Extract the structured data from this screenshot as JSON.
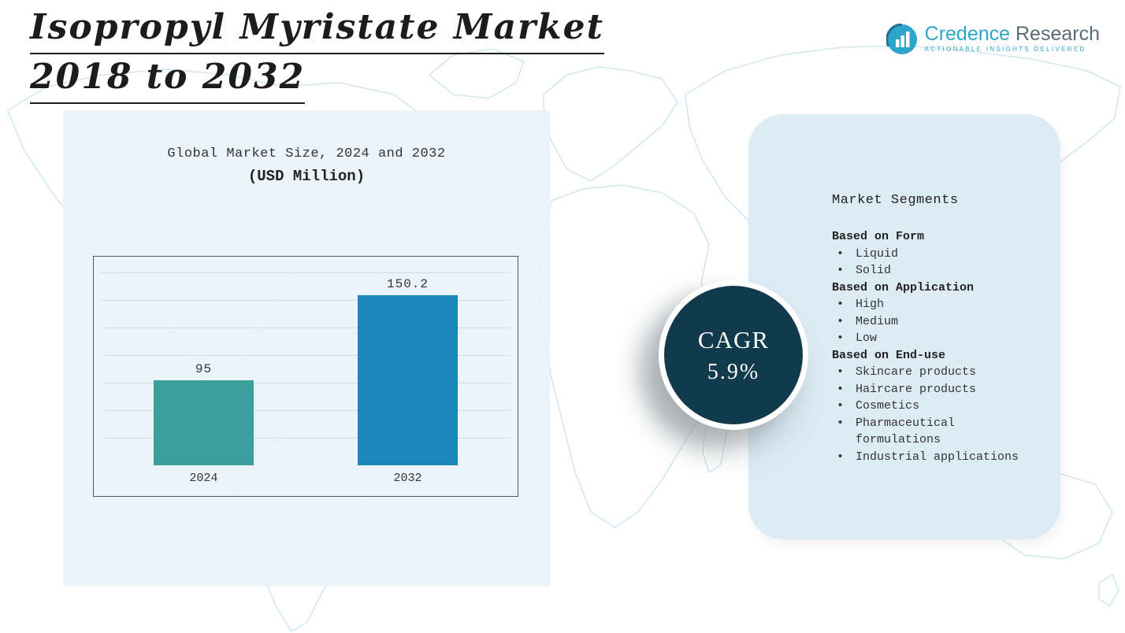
{
  "page": {
    "title_line1": "Isopropyl Myristate Market",
    "title_line2": "2018 to 2032"
  },
  "logo": {
    "brand_primary": "Credence",
    "brand_secondary": "Research",
    "tagline": "Actionable Insights Delivered"
  },
  "chart_data": {
    "type": "bar",
    "title": "Global Market Size, 2024 and 2032",
    "subtitle": "(USD Million)",
    "categories": [
      "2024",
      "2032"
    ],
    "values": [
      95,
      150.2
    ],
    "value_labels": [
      "95",
      "150.2"
    ],
    "xlabel": "",
    "ylabel": "",
    "bar_colors": [
      "#3d9f9c",
      "#1b86b8"
    ],
    "ylim": [
      40,
      165
    ],
    "gridlines": 7,
    "grid": true,
    "legend": "none"
  },
  "cagr": {
    "label": "CAGR",
    "value": "5.9%"
  },
  "segments": {
    "heading": "Market Segments",
    "groups": [
      {
        "title": "Based on Form",
        "items": [
          "Liquid",
          "Solid"
        ]
      },
      {
        "title": "Based on Application",
        "items": [
          "High",
          "Medium",
          "Low"
        ]
      },
      {
        "title": "Based on End-use",
        "items": [
          "Skincare products",
          "Haircare products",
          "Cosmetics",
          "Pharmaceutical formulations",
          "Industrial applications"
        ]
      }
    ]
  },
  "colors": {
    "accent_teal": "#2da5c8",
    "brand_gray": "#5a6b76",
    "panel_left_bg": "#e8f2f9",
    "panel_right_bg": "#dcebf4",
    "cagr_circle": "#123a4d",
    "bar_2024": "#3d9f9c",
    "bar_2032": "#1b86b8",
    "map_stroke": "#c8e3f0"
  }
}
